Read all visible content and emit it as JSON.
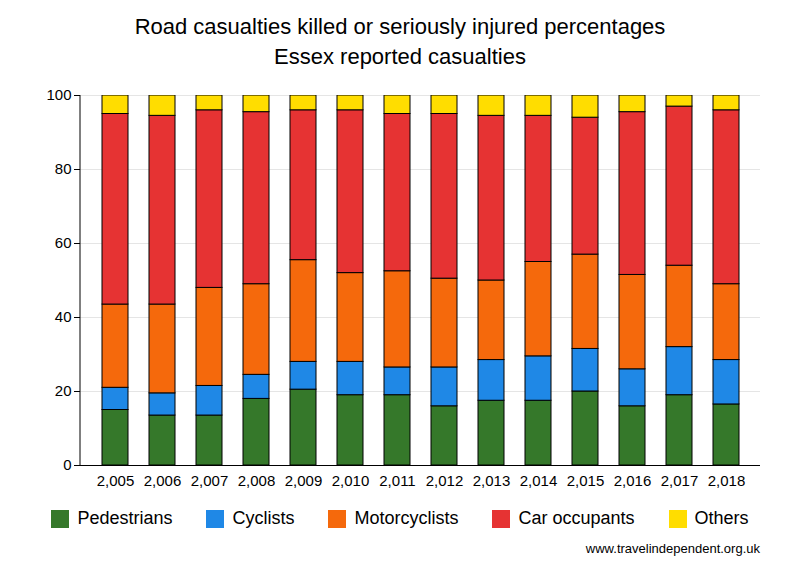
{
  "chart_data": {
    "type": "bar",
    "stacked": true,
    "title": "Road casualties killed or seriously injured percentages",
    "subtitle": "Essex reported casualties",
    "caption": "www.travelindependent.org.uk",
    "categories": [
      2005,
      2006,
      2007,
      2008,
      2009,
      2010,
      2011,
      2012,
      2013,
      2014,
      2015,
      2016,
      2017,
      2018
    ],
    "series": [
      {
        "name": "Pedestrians",
        "color": "#35782a",
        "values": [
          15,
          13.5,
          13.5,
          18,
          20.5,
          19,
          19,
          16,
          17.5,
          17.5,
          20,
          16,
          19,
          16.5
        ]
      },
      {
        "name": "Cyclists",
        "color": "#1f88e6",
        "values": [
          6,
          6,
          8,
          6.5,
          7.5,
          9,
          7.5,
          10.5,
          11,
          12,
          11.5,
          10,
          13,
          12
        ]
      },
      {
        "name": "Motorcyclists",
        "color": "#f5690c",
        "values": [
          22.5,
          24,
          26.5,
          24.5,
          27.5,
          24,
          26,
          24,
          21.5,
          25.5,
          25.5,
          25.5,
          22,
          20.5
        ]
      },
      {
        "name": "Car occupants",
        "color": "#e63333",
        "values": [
          51.5,
          51,
          48,
          46.5,
          40.5,
          44,
          42.5,
          44.5,
          44.5,
          39.5,
          37,
          44,
          43,
          47
        ]
      },
      {
        "name": "Others",
        "color": "#ffdd00",
        "values": [
          5,
          5.5,
          4,
          4.5,
          4,
          4,
          5,
          5,
          5.5,
          5.5,
          6,
          4.5,
          3,
          4
        ]
      }
    ],
    "ylim": [
      0,
      100
    ],
    "yticks": [
      0,
      20,
      40,
      60,
      80,
      100
    ],
    "grid": true,
    "legend": "bottom"
  }
}
